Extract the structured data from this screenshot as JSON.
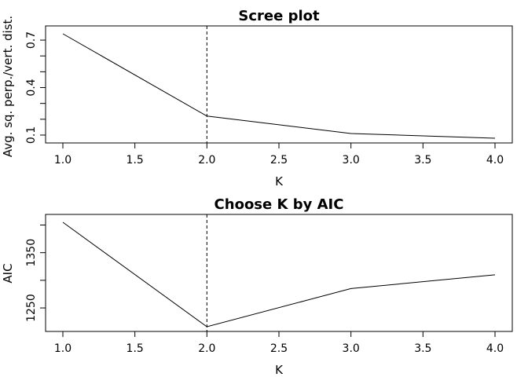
{
  "chart_data": [
    {
      "type": "line",
      "title": "Scree plot",
      "xlabel": "K",
      "ylabel": "Avg. sq. perp./vert. dist.",
      "x": [
        1,
        2,
        3,
        4
      ],
      "series": [
        {
          "values": [
            0.74,
            0.22,
            0.11,
            0.08
          ]
        }
      ],
      "xlim": [
        1,
        4
      ],
      "ylim": [
        0.08,
        0.74
      ],
      "xticks": [
        1.0,
        1.5,
        2.0,
        2.5,
        3.0,
        3.5,
        4.0
      ],
      "xtick_labels": [
        "1.0",
        "1.5",
        "2.0",
        "2.5",
        "3.0",
        "3.5",
        "4.0"
      ],
      "yticks": [
        0.1,
        0.2,
        0.3,
        0.4,
        0.5,
        0.6,
        0.7
      ],
      "ytick_labels": [
        "0.1",
        "",
        "",
        "0.4",
        "",
        "",
        "0.7"
      ],
      "vline": 2,
      "grid": false,
      "legend": "none"
    },
    {
      "type": "line",
      "title": "Choose K by AIC",
      "xlabel": "K",
      "ylabel": "AIC",
      "x": [
        1,
        2,
        3,
        4
      ],
      "series": [
        {
          "values": [
            1405,
            1216,
            1285,
            1310
          ]
        }
      ],
      "xlim": [
        1,
        4
      ],
      "ylim": [
        1216,
        1405
      ],
      "xticks": [
        1.0,
        1.5,
        2.0,
        2.5,
        3.0,
        3.5,
        4.0
      ],
      "xtick_labels": [
        "1.0",
        "1.5",
        "2.0",
        "2.5",
        "3.0",
        "3.5",
        "4.0"
      ],
      "yticks": [
        1250,
        1300,
        1350,
        1400
      ],
      "ytick_labels": [
        "1250",
        "",
        "1350",
        ""
      ],
      "vline": 2,
      "grid": false,
      "legend": "none"
    }
  ]
}
